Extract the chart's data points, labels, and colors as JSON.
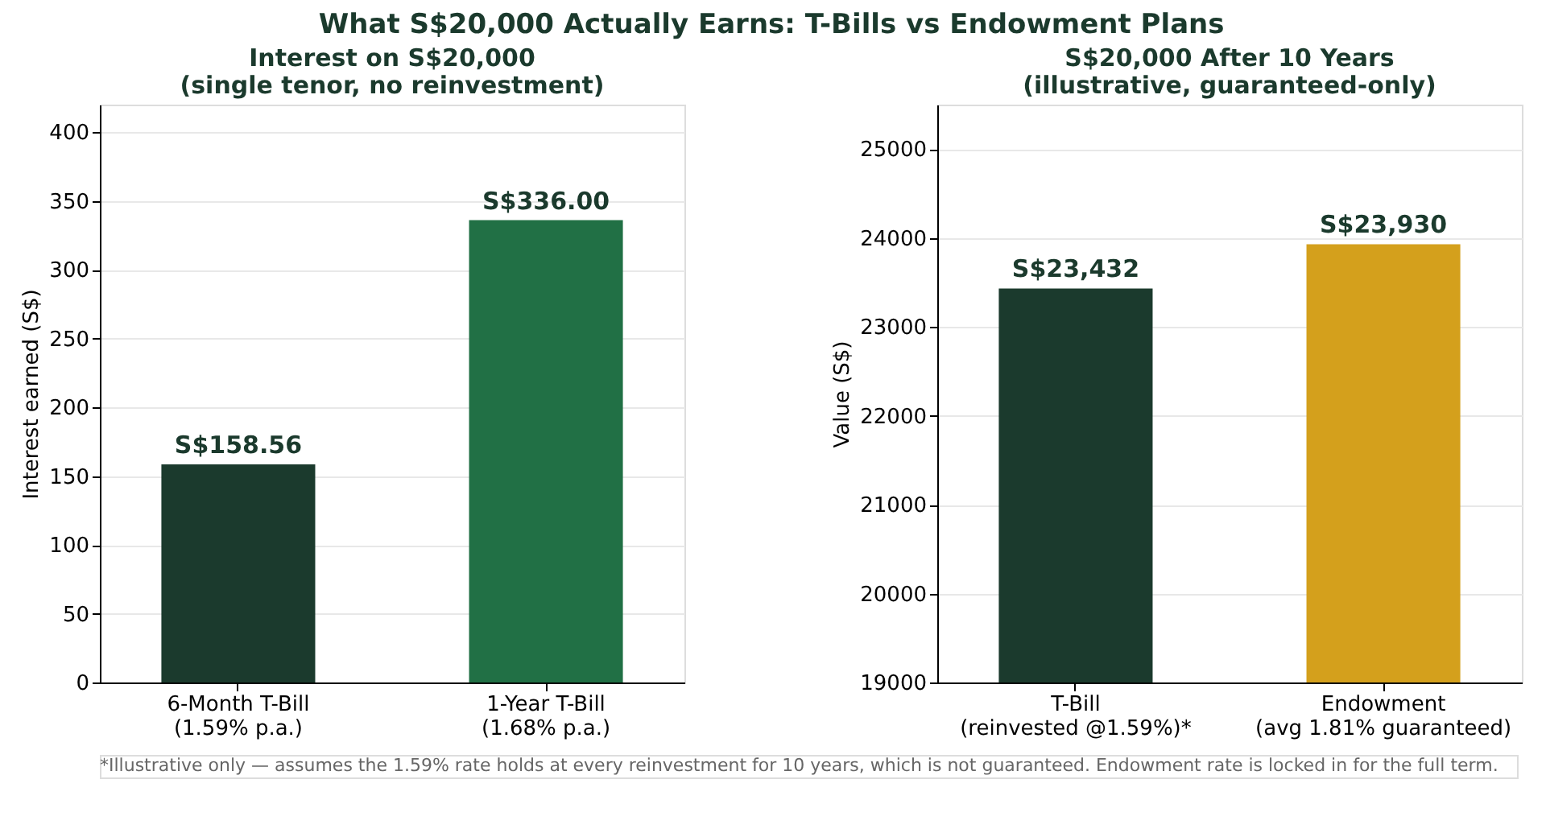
{
  "chart_data": [
    {
      "type": "other",
      "title": "What S$20,000 Actually Earns: T-Bills vs Endowment Plans",
      "annotations": [
        "*Illustrative only — assumes the 1.59% rate holds at every reinvestment for 10 years, which is not guaranteed. Endowment rate is locked in for the full term."
      ]
    },
    {
      "type": "bar",
      "title": "Interest on S$20,000\n(single tenor, no reinvestment)",
      "ylabel": "Interest earned (S$)",
      "categories": [
        "6-Month T-Bill\n(1.59% p.a.)",
        "1-Year T-Bill\n(1.68% p.a.)"
      ],
      "values": [
        158.56,
        336.0
      ],
      "colors": [
        "#1b3a2d",
        "#217045"
      ],
      "value_labels": [
        "S$158.56",
        "S$336.00"
      ],
      "ylim": [
        0,
        420
      ],
      "yticks": [
        0,
        50,
        100,
        150,
        200,
        250,
        300,
        350,
        400
      ],
      "grid": "y"
    },
    {
      "type": "bar",
      "title": "S$20,000 After 10 Years\n(illustrative, guaranteed-only)",
      "ylabel": "Value (S$)",
      "categories": [
        "T-Bill\n(reinvested @1.59%)*",
        "Endowment\n(avg 1.81% guaranteed)"
      ],
      "values": [
        23432,
        23930
      ],
      "colors": [
        "#1b3a2d",
        "#d4a01c"
      ],
      "value_labels": [
        "S$23,432",
        "S$23,930"
      ],
      "ylim": [
        19000,
        25500
      ],
      "yticks": [
        19000,
        20000,
        21000,
        22000,
        23000,
        24000,
        25000
      ],
      "grid": "y"
    }
  ]
}
